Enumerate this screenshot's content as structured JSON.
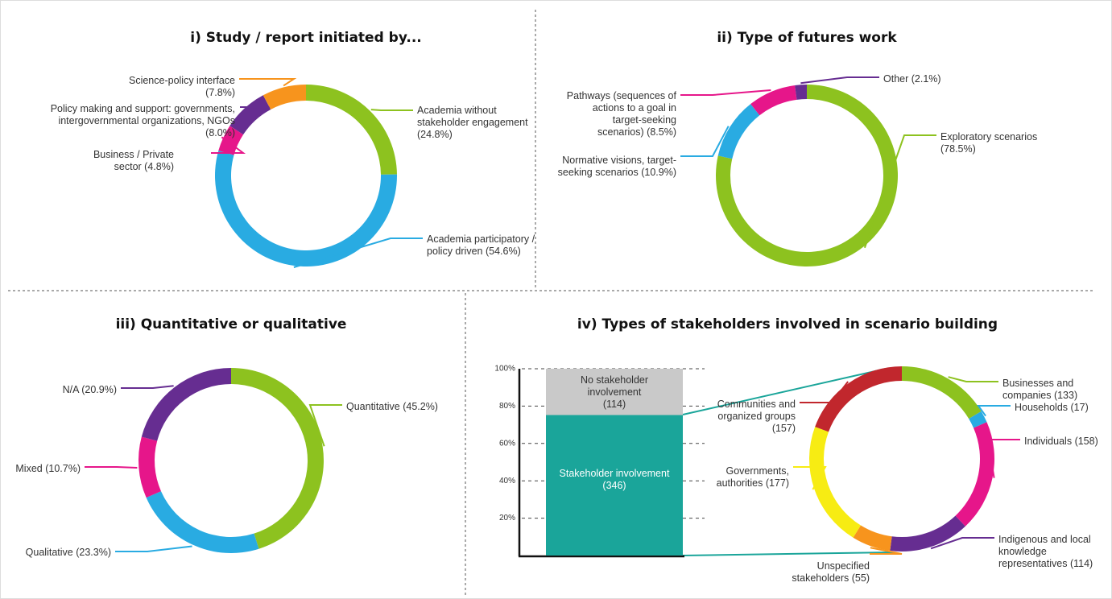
{
  "chart_data": [
    {
      "type": "donut",
      "title": "i) Study / report initiated by...",
      "categories": [
        "Academia without stakeholder engagement",
        "Academia participatory / policy driven",
        "Business / Private sector",
        "Policy making and support: governments, intergovernmental organizations, NGOs",
        "Science-policy interface"
      ],
      "values": [
        24.8,
        54.6,
        4.8,
        8.0,
        7.8
      ],
      "value_labels": [
        "(24.8%)",
        "(54.6%)",
        "(4.8%)",
        "(8.0%)",
        "(7.8%)"
      ],
      "colors": [
        "#8dc21f",
        "#29abe2",
        "#e6168a",
        "#662d91",
        "#f7941d"
      ]
    },
    {
      "type": "donut",
      "title": "ii) Type of futures work",
      "categories": [
        "Exploratory scenarios",
        "Normative visions, target-seeking scenarios",
        "Pathways (sequences of actions to a goal in target-seeking scenarios)",
        "Other"
      ],
      "values": [
        78.5,
        10.9,
        8.5,
        2.1
      ],
      "value_labels": [
        "(78.5%)",
        "(10.9%)",
        "(8.5%)",
        "(2.1%)"
      ],
      "colors": [
        "#8dc21f",
        "#29abe2",
        "#e6168a",
        "#662d91"
      ]
    },
    {
      "type": "donut",
      "title": "iii) Quantitative or qualitative",
      "categories": [
        "Quantitative",
        "Qualitative",
        "Mixed",
        "N/A"
      ],
      "values": [
        45.2,
        23.3,
        10.7,
        20.9
      ],
      "value_labels": [
        "(45.2%)",
        "(23.3%)",
        "(10.7%)",
        "(20.9%)"
      ],
      "colors": [
        "#8dc21f",
        "#29abe2",
        "#e6168a",
        "#662d91"
      ]
    },
    {
      "type": "stacked_bar",
      "title": "iv) Types of stakeholders involved in scenario building",
      "series": [
        {
          "name": "Stakeholder involvement",
          "color": "#1aa59a",
          "values": [
            346
          ],
          "value_labels": [
            "(346)"
          ]
        },
        {
          "name": "No stakeholder involvement",
          "color": "#c9c9c9",
          "values": [
            114
          ],
          "value_labels": [
            "(114)"
          ]
        }
      ],
      "ylim": [
        0,
        460
      ],
      "yticks": [
        {
          "value": 92,
          "label": "20%"
        },
        {
          "value": 184,
          "label": "40%"
        },
        {
          "value": 276,
          "label": "60%"
        },
        {
          "value": 368,
          "label": "80%"
        },
        {
          "value": 460,
          "label": "100%"
        }
      ]
    },
    {
      "type": "donut",
      "categories": [
        "Businesses and companies",
        "Households",
        "Individuals",
        "Indigenous and local knowledge representatives",
        "Unspecified stakeholders",
        "Governments, authorities",
        "Communities and organized groups"
      ],
      "values": [
        133,
        17,
        158,
        114,
        55,
        177,
        157
      ],
      "value_labels": [
        "(133)",
        "(17)",
        "(158)",
        "(114)",
        "(55)",
        "(177)",
        "(157)"
      ],
      "colors": [
        "#8dc21f",
        "#29abe2",
        "#e6168a",
        "#662d91",
        "#f7941d",
        "#f7ec13",
        "#c1272d"
      ]
    }
  ]
}
